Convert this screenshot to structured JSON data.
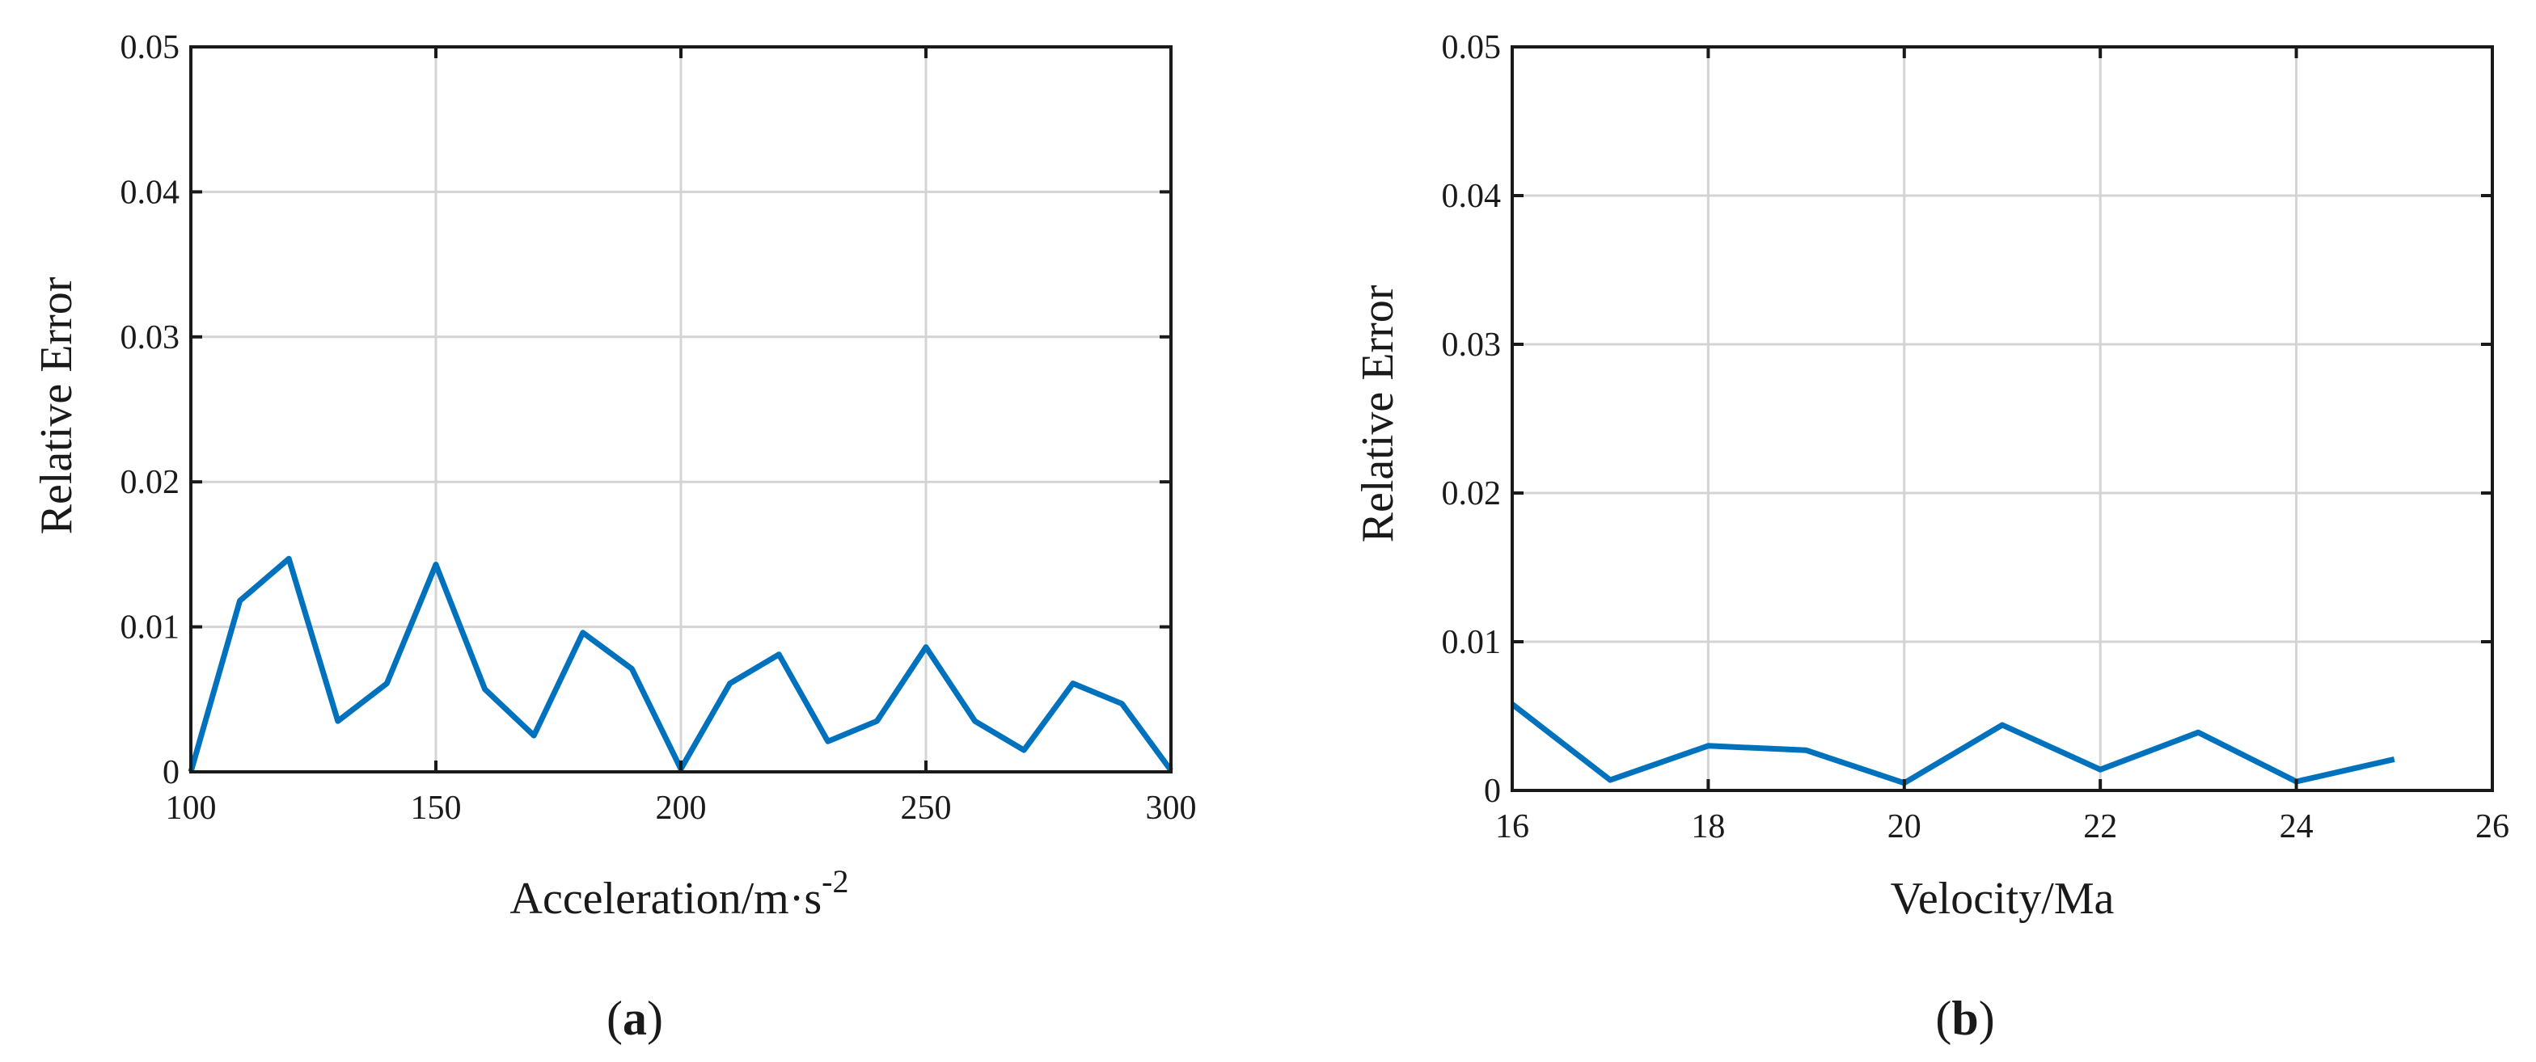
{
  "chart_data": [
    {
      "type": "line",
      "panel_label": "a",
      "xlabel": "Acceleration/m·s",
      "xlabel_superscript": "-2",
      "ylabel": "Relative Error",
      "xlim": [
        100,
        300
      ],
      "ylim": [
        0,
        0.05
      ],
      "xticks": [
        "100",
        "150",
        "200",
        "250",
        "300"
      ],
      "yticks": [
        "0",
        "0.01",
        "0.02",
        "0.03",
        "0.04",
        "0.05"
      ],
      "grid": true,
      "line_color": "#0072BD",
      "series": [
        {
          "x": [
            100,
            110,
            120,
            130,
            140,
            150,
            160,
            170,
            180,
            190,
            200,
            210,
            220,
            230,
            240,
            250,
            260,
            270,
            280,
            290,
            300
          ],
          "y": [
            0.0,
            0.0118,
            0.0147,
            0.0035,
            0.0061,
            0.0143,
            0.0057,
            0.0025,
            0.0096,
            0.0071,
            0.0002,
            0.0061,
            0.0081,
            0.0021,
            0.0035,
            0.0086,
            0.0035,
            0.0015,
            0.0061,
            0.0047,
            0.0001
          ]
        }
      ]
    },
    {
      "type": "line",
      "panel_label": "b",
      "xlabel": "Velocity/Ma",
      "ylabel": "Relative Error",
      "xlim": [
        16,
        26
      ],
      "ylim": [
        0,
        0.05
      ],
      "xticks": [
        "16",
        "18",
        "20",
        "22",
        "24",
        "26"
      ],
      "yticks": [
        "0",
        "0.01",
        "0.02",
        "0.03",
        "0.04",
        "0.05"
      ],
      "grid": true,
      "line_color": "#0072BD",
      "series": [
        {
          "x": [
            16,
            17,
            18,
            19,
            20,
            21,
            22,
            23,
            24,
            25
          ],
          "y": [
            0.0058,
            0.0007,
            0.003,
            0.0027,
            0.0005,
            0.0044,
            0.0014,
            0.0039,
            0.0006,
            0.0021
          ]
        }
      ]
    }
  ]
}
